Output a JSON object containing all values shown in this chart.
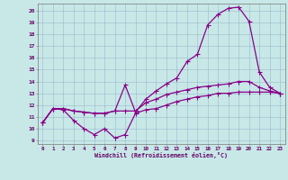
{
  "xlabel": "Windchill (Refroidissement éolien,°C)",
  "bg_color": "#c8e8e8",
  "line_color": "#880088",
  "ylim_min": 8.7,
  "ylim_max": 20.6,
  "xlim_min": -0.5,
  "xlim_max": 23.5,
  "yticks": [
    9,
    10,
    11,
    12,
    13,
    14,
    15,
    16,
    17,
    18,
    19,
    20
  ],
  "xticks": [
    0,
    1,
    2,
    3,
    4,
    5,
    6,
    7,
    8,
    9,
    10,
    11,
    12,
    13,
    14,
    15,
    16,
    17,
    18,
    19,
    20,
    21,
    22,
    23
  ],
  "line1_x": [
    0,
    1,
    2,
    3,
    4,
    5,
    6,
    7,
    8,
    9,
    10,
    11,
    12,
    13,
    14,
    15,
    16,
    17,
    18,
    19,
    20,
    21,
    22,
    23
  ],
  "line1_y": [
    10.5,
    11.7,
    11.6,
    10.7,
    10.0,
    9.5,
    10.0,
    9.2,
    9.5,
    11.3,
    11.6,
    11.7,
    12.0,
    12.3,
    12.5,
    12.7,
    12.8,
    13.0,
    13.0,
    13.1,
    13.1,
    13.1,
    13.1,
    13.0
  ],
  "line2_x": [
    0,
    1,
    2,
    3,
    4,
    5,
    6,
    7,
    8,
    9,
    10,
    11,
    12,
    13,
    14,
    15,
    16,
    17,
    18,
    19,
    20,
    21,
    22,
    23
  ],
  "line2_y": [
    10.5,
    11.7,
    11.7,
    11.5,
    11.4,
    11.3,
    11.3,
    11.5,
    13.7,
    11.4,
    12.5,
    13.2,
    13.8,
    14.3,
    15.7,
    16.3,
    18.8,
    19.7,
    20.2,
    20.3,
    19.1,
    14.8,
    13.5,
    13.0
  ],
  "line3_x": [
    0,
    1,
    2,
    3,
    4,
    5,
    6,
    7,
    8,
    9,
    10,
    11,
    12,
    13,
    14,
    15,
    16,
    17,
    18,
    19,
    20,
    21,
    22,
    23
  ],
  "line3_y": [
    10.5,
    11.7,
    11.7,
    11.5,
    11.4,
    11.3,
    11.3,
    11.5,
    11.5,
    11.5,
    12.2,
    12.5,
    12.9,
    13.1,
    13.3,
    13.5,
    13.6,
    13.7,
    13.8,
    14.0,
    14.0,
    13.5,
    13.2,
    13.0
  ],
  "lw": 0.9,
  "ms": 2.0
}
